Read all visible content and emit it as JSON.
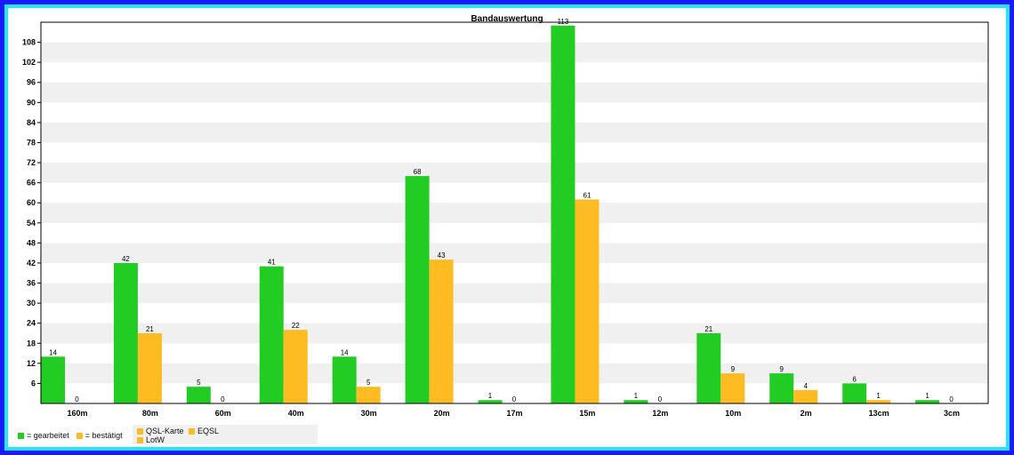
{
  "chart_data": {
    "type": "bar",
    "title": "Bandauswertung",
    "categories": [
      "160m",
      "80m",
      "60m",
      "40m",
      "30m",
      "20m",
      "17m",
      "15m",
      "12m",
      "10m",
      "2m",
      "13cm",
      "3cm"
    ],
    "series": [
      {
        "name": "gearbeitet",
        "color": "#22cc22",
        "values": [
          14,
          42,
          5,
          41,
          14,
          68,
          1,
          113,
          1,
          21,
          9,
          6,
          1
        ]
      },
      {
        "name": "bestätigt",
        "color": "#ffbb22",
        "values": [
          0,
          21,
          0,
          22,
          5,
          43,
          0,
          61,
          0,
          9,
          4,
          1,
          0
        ]
      }
    ],
    "yticks": [
      6,
      12,
      18,
      24,
      30,
      36,
      42,
      48,
      54,
      60,
      66,
      72,
      78,
      84,
      90,
      96,
      102,
      108
    ],
    "ylim": [
      0,
      114
    ],
    "grid": "alternating horizontal bands"
  },
  "legend": {
    "worked": {
      "swatch": "#22cc22",
      "label": "= gearbeitet"
    },
    "confirmed": {
      "swatch": "#ffbb22",
      "label": "= bestätigt"
    }
  },
  "confirm_legend": {
    "qsl": {
      "swatch": "#ffbb22",
      "label": "QSL-Karte"
    },
    "eqsl": {
      "swatch": "#ffbb22",
      "label": "EQSL"
    },
    "lotw": {
      "swatch": "#ffbb22",
      "label": "LotW"
    }
  }
}
